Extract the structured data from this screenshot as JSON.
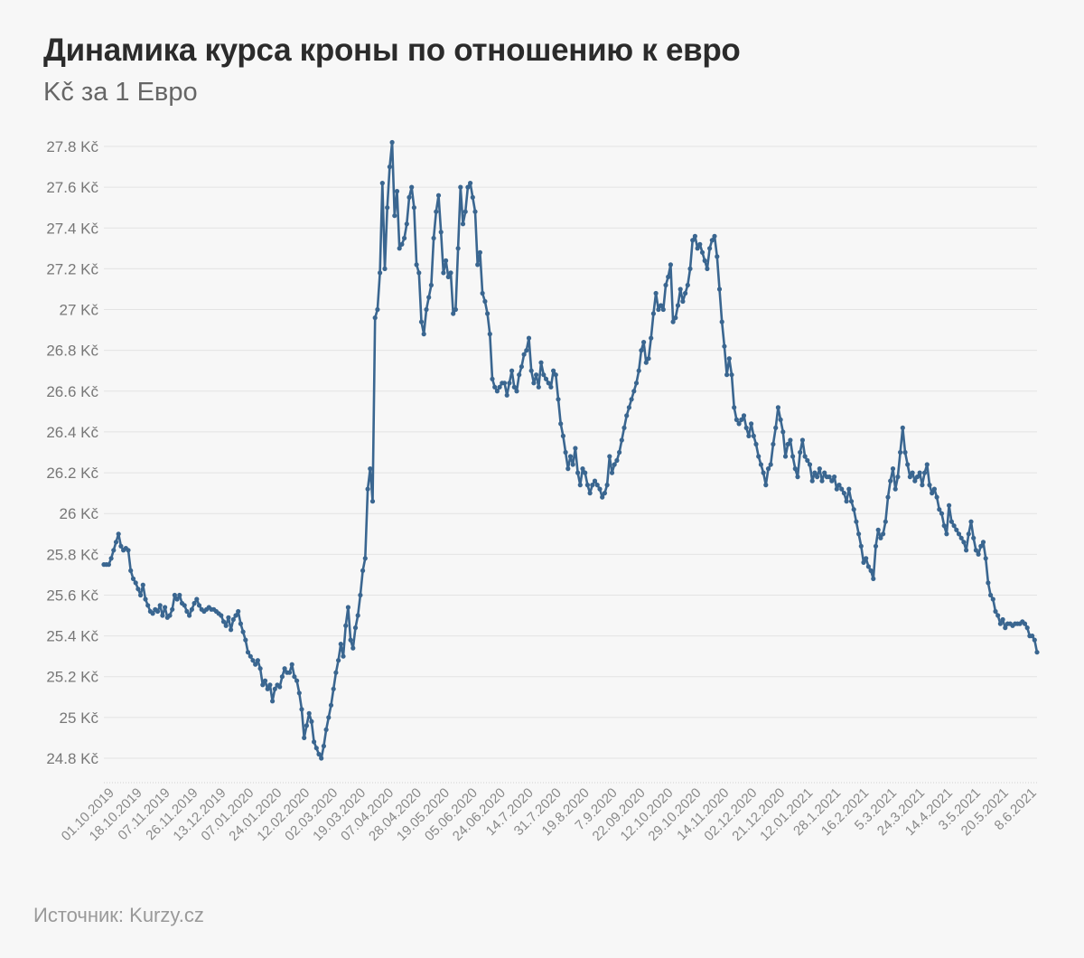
{
  "chart_data": {
    "type": "line",
    "title": "Динамика курса кроны по отношению к евро",
    "subtitle": "Kč за 1 Евро",
    "source": "Источник: Kurzy.cz",
    "ylim": [
      24.8,
      27.8
    ],
    "grid": true,
    "y_ticks": [
      "27.8 Kč",
      "27.6 Kč",
      "27.4 Kč",
      "27.2 Kč",
      "27 Kč",
      "26.8 Kč",
      "26.6 Kč",
      "26.4 Kč",
      "26.2 Kč",
      "26 Kč",
      "25.8 Kč",
      "25.6 Kč",
      "25.4 Kč",
      "25.2 Kč",
      "25 Kč",
      "24.8 Kč"
    ],
    "y_tick_values": [
      27.8,
      27.6,
      27.4,
      27.2,
      27.0,
      26.8,
      26.6,
      26.4,
      26.2,
      26.0,
      25.8,
      25.6,
      25.4,
      25.2,
      25.0,
      24.8
    ],
    "x_ticks": [
      "01.10.2019",
      "18.10.2019",
      "07.11.2019",
      "26.11.2019",
      "13.12.2019",
      "07.01.2020",
      "24.01.2020",
      "12.02.2020",
      "02.03.2020",
      "19.03.2020",
      "07.04.2020",
      "28.04.2020",
      "19.05.2020",
      "05.06.2020",
      "24.06.2020",
      "14.7.2020",
      "31.7.2020",
      "19.8.2020",
      "7.9.2020",
      "22.09.2020",
      "12.10.2020",
      "29.10.2020",
      "14.11.2020",
      "02.12.2020",
      "21.12.2020",
      "12.01.2021",
      "28.1.2021",
      "16.2.2021",
      "5.3.2021",
      "24.3.2021",
      "14.4.2021",
      "3.5.2021",
      "20.5.2021",
      "8.6.2021"
    ],
    "series": [
      {
        "color": "#3a6690",
        "values": [
          25.75,
          25.75,
          25.75,
          25.78,
          25.82,
          25.86,
          25.9,
          25.84,
          25.82,
          25.83,
          25.82,
          25.72,
          25.68,
          25.66,
          25.63,
          25.6,
          25.65,
          25.58,
          25.55,
          25.52,
          25.51,
          25.53,
          25.52,
          25.55,
          25.5,
          25.54,
          25.49,
          25.5,
          25.53,
          25.6,
          25.58,
          25.6,
          25.56,
          25.55,
          25.52,
          25.5,
          25.53,
          25.56,
          25.58,
          25.55,
          25.53,
          25.52,
          25.53,
          25.54,
          25.53,
          25.53,
          25.52,
          25.51,
          25.5,
          25.47,
          25.45,
          25.49,
          25.43,
          25.48,
          25.5,
          25.52,
          25.46,
          25.42,
          25.38,
          25.32,
          25.3,
          25.28,
          25.26,
          25.28,
          25.24,
          25.16,
          25.18,
          25.14,
          25.16,
          25.08,
          25.14,
          25.16,
          25.15,
          25.2,
          25.24,
          25.22,
          25.22,
          25.26,
          25.2,
          25.18,
          25.12,
          25.04,
          24.9,
          24.96,
          25.02,
          24.98,
          24.88,
          24.85,
          24.82,
          24.8,
          24.86,
          24.94,
          25.0,
          25.06,
          25.14,
          25.22,
          25.28,
          25.36,
          25.3,
          25.45,
          25.54,
          25.38,
          25.34,
          25.44,
          25.5,
          25.6,
          25.72,
          25.78,
          26.12,
          26.22,
          26.06,
          26.96,
          27.0,
          27.18,
          27.62,
          27.2,
          27.5,
          27.7,
          27.82,
          27.46,
          27.58,
          27.3,
          27.32,
          27.35,
          27.42,
          27.55,
          27.6,
          27.5,
          27.22,
          27.18,
          26.94,
          26.88,
          27.0,
          27.06,
          27.12,
          27.35,
          27.48,
          27.56,
          27.38,
          27.18,
          27.24,
          27.16,
          27.18,
          26.98,
          27.0,
          27.3,
          27.6,
          27.42,
          27.48,
          27.6,
          27.62,
          27.55,
          27.48,
          27.22,
          27.28,
          27.08,
          27.04,
          26.98,
          26.88,
          26.66,
          26.62,
          26.6,
          26.62,
          26.64,
          26.64,
          26.58,
          26.64,
          26.7,
          26.62,
          26.6,
          26.68,
          26.72,
          26.78,
          26.8,
          26.86,
          26.7,
          26.64,
          26.68,
          26.62,
          26.74,
          26.68,
          26.66,
          26.64,
          26.62,
          26.7,
          26.68,
          26.56,
          26.44,
          26.38,
          26.3,
          26.22,
          26.28,
          26.24,
          26.32,
          26.2,
          26.14,
          26.22,
          26.2,
          26.14,
          26.1,
          26.14,
          26.16,
          26.14,
          26.12,
          26.08,
          26.1,
          26.14,
          26.28,
          26.2,
          26.24,
          26.26,
          26.3,
          26.36,
          26.42,
          26.48,
          26.52,
          26.56,
          26.6,
          26.64,
          26.7,
          26.8,
          26.84,
          26.74,
          26.76,
          26.86,
          26.98,
          27.08,
          27.0,
          27.02,
          27.0,
          27.12,
          27.16,
          27.22,
          26.94,
          26.96,
          27.02,
          27.1,
          27.04,
          27.08,
          27.12,
          27.2,
          27.34,
          27.36,
          27.3,
          27.32,
          27.28,
          27.24,
          27.2,
          27.3,
          27.34,
          27.36,
          27.26,
          27.1,
          26.94,
          26.82,
          26.68,
          26.76,
          26.68,
          26.52,
          26.46,
          26.44,
          26.46,
          26.48,
          26.42,
          26.38,
          26.44,
          26.38,
          26.34,
          26.28,
          26.24,
          26.2,
          26.14,
          26.22,
          26.24,
          26.34,
          26.42,
          26.52,
          26.46,
          26.4,
          26.28,
          26.34,
          26.36,
          26.28,
          26.22,
          26.18,
          26.3,
          26.36,
          26.28,
          26.26,
          26.24,
          26.16,
          26.2,
          26.18,
          26.22,
          26.16,
          26.2,
          26.18,
          26.18,
          26.16,
          26.18,
          26.12,
          26.14,
          26.12,
          26.1,
          26.06,
          26.12,
          26.06,
          26.02,
          25.96,
          25.9,
          25.84,
          25.76,
          25.78,
          25.74,
          25.72,
          25.68,
          25.84,
          25.92,
          25.88,
          25.9,
          25.96,
          26.08,
          26.16,
          26.22,
          26.12,
          26.18,
          26.3,
          26.42,
          26.3,
          26.24,
          26.18,
          26.2,
          26.16,
          26.18,
          26.2,
          26.14,
          26.2,
          26.24,
          26.14,
          26.1,
          26.12,
          26.08,
          26.02,
          26.0,
          25.94,
          25.9,
          26.04,
          25.96,
          25.94,
          25.92,
          25.9,
          25.88,
          25.86,
          25.82,
          25.9,
          25.96,
          25.88,
          25.82,
          25.8,
          25.84,
          25.86,
          25.78,
          25.66,
          25.6,
          25.58,
          25.52,
          25.5,
          25.46,
          25.48,
          25.44,
          25.46,
          25.46,
          25.45,
          25.46,
          25.46,
          25.46,
          25.47,
          25.46,
          25.44,
          25.4,
          25.4,
          25.38,
          25.32
        ]
      }
    ]
  }
}
